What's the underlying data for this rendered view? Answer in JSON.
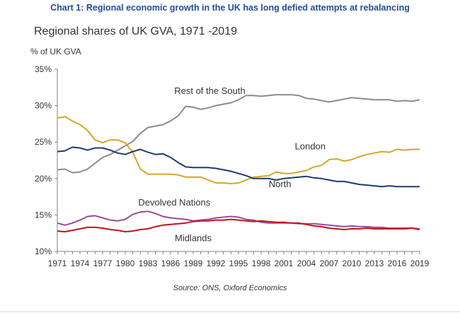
{
  "header": {
    "title": "Chart 1: Regional economic growth in the UK has long defied attempts at rebalancing"
  },
  "footer": {
    "source": "Source: ONS, Oxford Economics"
  },
  "chart_data": {
    "type": "line",
    "title": "Regional shares of UK GVA, 1971 -2019",
    "ylabel": "% of UK GVA",
    "xlabel": "",
    "ylim": [
      10,
      35
    ],
    "yticks": [
      10,
      15,
      20,
      25,
      30,
      35
    ],
    "ytick_labels": [
      "10%",
      "15%",
      "20%",
      "25%",
      "30%",
      "35%"
    ],
    "xlim": [
      1971,
      2019
    ],
    "xtick_labels": [
      "1971",
      "1974",
      "1977",
      "1980",
      "1983",
      "1986",
      "1989",
      "1992",
      "1995",
      "1998",
      "2001",
      "2004",
      "2007",
      "2010",
      "2013",
      "2016",
      "2019"
    ],
    "grid": false,
    "legend": "none",
    "x": [
      1971,
      1972,
      1973,
      1974,
      1975,
      1976,
      1977,
      1978,
      1979,
      1980,
      1981,
      1982,
      1983,
      1984,
      1985,
      1986,
      1987,
      1988,
      1989,
      1990,
      1991,
      1992,
      1993,
      1994,
      1995,
      1996,
      1997,
      1998,
      1999,
      2000,
      2001,
      2002,
      2003,
      2004,
      2005,
      2006,
      2007,
      2008,
      2009,
      2010,
      2011,
      2012,
      2013,
      2014,
      2015,
      2016,
      2017,
      2018,
      2019
    ],
    "series": [
      {
        "name": "Rest of the South",
        "color": "#8c8c8c",
        "values": [
          21.2,
          21.3,
          20.8,
          20.9,
          21.3,
          22.1,
          22.9,
          23.3,
          23.9,
          24.5,
          25.1,
          26.2,
          27.0,
          27.2,
          27.4,
          27.9,
          28.6,
          29.9,
          29.8,
          29.5,
          29.7,
          30.0,
          30.2,
          30.4,
          30.8,
          31.4,
          31.4,
          31.3,
          31.4,
          31.5,
          31.5,
          31.5,
          31.4,
          31.0,
          30.9,
          30.7,
          30.5,
          30.7,
          30.9,
          31.1,
          31.0,
          30.9,
          30.8,
          30.8,
          30.8,
          30.6,
          30.7,
          30.6,
          30.8
        ]
      },
      {
        "name": "London",
        "color": "#d4a62a",
        "values": [
          28.3,
          28.5,
          27.9,
          27.4,
          26.6,
          25.3,
          24.9,
          25.3,
          25.3,
          24.9,
          23.6,
          21.3,
          20.6,
          20.6,
          20.6,
          20.6,
          20.5,
          20.2,
          20.2,
          20.2,
          19.8,
          19.4,
          19.4,
          19.3,
          19.4,
          19.8,
          20.2,
          20.3,
          20.4,
          20.9,
          20.7,
          20.7,
          20.9,
          21.1,
          21.6,
          21.8,
          22.6,
          22.7,
          22.4,
          22.6,
          23.0,
          23.3,
          23.5,
          23.7,
          23.6,
          24.0,
          23.9,
          24.0,
          24.0
        ]
      },
      {
        "name": "North",
        "color": "#1f3a6e",
        "values": [
          23.7,
          23.8,
          24.3,
          24.2,
          23.9,
          24.2,
          24.2,
          23.9,
          23.5,
          23.3,
          23.7,
          24.0,
          23.6,
          23.3,
          23.4,
          22.9,
          22.2,
          21.6,
          21.5,
          21.5,
          21.5,
          21.4,
          21.2,
          21.0,
          20.7,
          20.4,
          20.0,
          20.0,
          20.0,
          19.8,
          20.0,
          20.1,
          20.2,
          20.3,
          20.1,
          20.0,
          19.8,
          19.6,
          19.6,
          19.4,
          19.2,
          19.1,
          19.0,
          18.9,
          19.0,
          18.9,
          18.9,
          18.9,
          18.9
        ]
      },
      {
        "name": "Devolved Nations",
        "color": "#9b4a9b",
        "values": [
          13.9,
          13.6,
          13.9,
          14.3,
          14.8,
          14.9,
          14.6,
          14.3,
          14.2,
          14.4,
          15.1,
          15.4,
          15.5,
          15.2,
          14.8,
          14.6,
          14.5,
          14.4,
          14.2,
          14.3,
          14.4,
          14.6,
          14.7,
          14.8,
          14.7,
          14.4,
          14.3,
          14.0,
          13.9,
          13.9,
          13.9,
          13.9,
          13.8,
          13.8,
          13.8,
          13.7,
          13.6,
          13.5,
          13.4,
          13.5,
          13.4,
          13.4,
          13.3,
          13.3,
          13.2,
          13.2,
          13.2,
          13.2,
          13.1
        ]
      },
      {
        "name": "Midlands",
        "color": "#c0141b",
        "values": [
          12.8,
          12.7,
          12.9,
          13.1,
          13.3,
          13.3,
          13.2,
          13.0,
          12.9,
          12.7,
          12.8,
          13.0,
          13.1,
          13.4,
          13.6,
          13.7,
          13.8,
          13.9,
          14.1,
          14.2,
          14.2,
          14.3,
          14.3,
          14.4,
          14.3,
          14.2,
          14.1,
          14.2,
          14.1,
          14.0,
          14.0,
          13.9,
          13.9,
          13.7,
          13.5,
          13.4,
          13.2,
          13.1,
          13.0,
          13.1,
          13.1,
          13.2,
          13.1,
          13.1,
          13.1,
          13.1,
          13.1,
          13.2,
          13.0
        ]
      }
    ]
  }
}
